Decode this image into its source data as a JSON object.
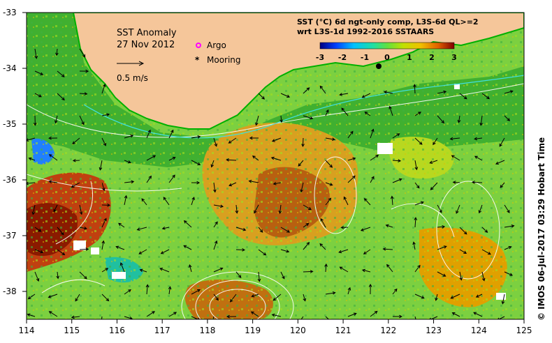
{
  "map": {
    "title": "SST Anomaly",
    "date": "27 Nov 2012",
    "scale_label": "0.5 m/s",
    "legend": [
      {
        "label": "Argo",
        "color": "#ff00ff",
        "symbol": "o"
      },
      {
        "label": "Mooring",
        "color": "#000000",
        "symbol": "*"
      }
    ],
    "colorbar": {
      "title_line1": "SST (°C) 6d ngt-only comp, L3S-6d QL>=2",
      "title_line2": "wrt L3S-1d 1992-2016 SSTAARS",
      "ticks": [
        "-3",
        "-2",
        "-1",
        "0",
        "1",
        "2",
        "3"
      ],
      "colors": [
        "#000080",
        "#0040ff",
        "#00c0ff",
        "#20e0a0",
        "#80e020",
        "#f0e000",
        "#f09000",
        "#c04000",
        "#800000"
      ]
    },
    "x_ticks": [
      "114",
      "115",
      "116",
      "117",
      "118",
      "119",
      "120",
      "121",
      "122",
      "123",
      "124",
      "125"
    ],
    "y_ticks": [
      "-33",
      "-34",
      "-35",
      "-36",
      "-37",
      "-38"
    ],
    "credit": "©  IMOS 06-Jul-2017 03:29 Hobart Time",
    "colors": {
      "land": "#f5c69a",
      "coast": "#00b000",
      "ocean_base": "#7cd040",
      "warm": "#e0a000",
      "hot": "#a03000",
      "contour": "#ffffff"
    }
  }
}
